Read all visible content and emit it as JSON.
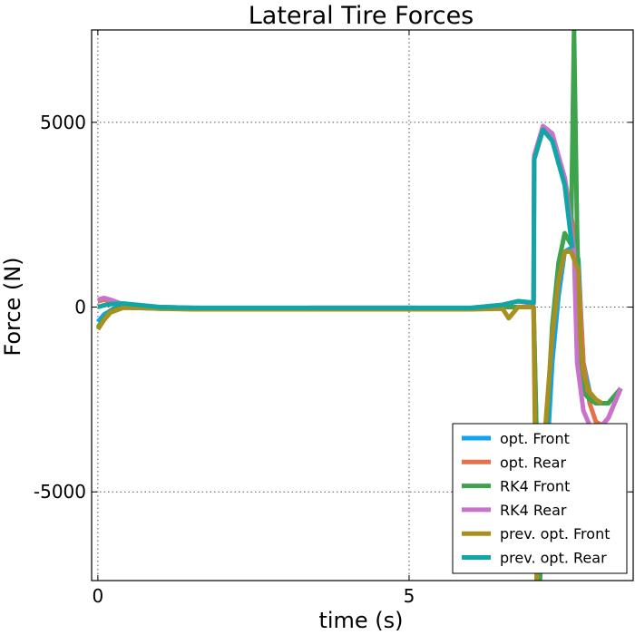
{
  "chart_data": {
    "type": "line",
    "title": "Lateral Tire Forces",
    "xlabel": "time (s)",
    "ylabel": "Force (N)",
    "xlim": [
      -0.1,
      8.6
    ],
    "ylim": [
      -7400,
      7500
    ],
    "xticks": [
      0,
      5
    ],
    "xtick_labels": [
      "0",
      "5"
    ],
    "yticks": [
      -5000,
      0,
      5000
    ],
    "ytick_labels": [
      "-5000",
      "0",
      "5000"
    ],
    "grid": true,
    "legend_position": "lower-right",
    "series": [
      {
        "name": "opt. Front",
        "color": "#0fa3f0",
        "points": [
          [
            0,
            -400
          ],
          [
            0.1,
            -200
          ],
          [
            0.3,
            0
          ],
          [
            0.6,
            -20
          ],
          [
            1,
            -40
          ],
          [
            1.5,
            -40
          ],
          [
            2,
            -50
          ],
          [
            2.5,
            -40
          ],
          [
            3,
            -50
          ],
          [
            3.5,
            -40
          ],
          [
            4,
            -40
          ],
          [
            4.5,
            -40
          ],
          [
            5,
            -40
          ],
          [
            5.5,
            -40
          ],
          [
            6,
            -40
          ],
          [
            6.5,
            0
          ],
          [
            6.75,
            0
          ],
          [
            7,
            0
          ],
          [
            7.1,
            -7400
          ],
          [
            7.2,
            -4500
          ],
          [
            7.3,
            -1500
          ],
          [
            7.4,
            300
          ],
          [
            7.5,
            1500
          ],
          [
            7.6,
            1600
          ],
          [
            7.72,
            1300
          ],
          [
            7.76,
            -200
          ],
          [
            7.8,
            -1500
          ],
          [
            7.9,
            -2300
          ],
          [
            8,
            -2600
          ],
          [
            8.2,
            -2600
          ],
          [
            8.4,
            -2200
          ]
        ]
      },
      {
        "name": "opt. Rear",
        "color": "#e5704a",
        "points": [
          [
            0,
            150
          ],
          [
            0.1,
            200
          ],
          [
            0.2,
            150
          ],
          [
            0.4,
            50
          ],
          [
            0.7,
            0
          ],
          [
            1,
            0
          ],
          [
            1.5,
            -20
          ],
          [
            2,
            -30
          ],
          [
            2.5,
            -30
          ],
          [
            3,
            -30
          ],
          [
            3.5,
            -20
          ],
          [
            4,
            -20
          ],
          [
            4.5,
            -20
          ],
          [
            5,
            -20
          ],
          [
            5.5,
            -30
          ],
          [
            6,
            -20
          ],
          [
            6.5,
            60
          ],
          [
            6.75,
            160
          ],
          [
            7,
            100
          ],
          [
            7.01,
            4000
          ],
          [
            7.15,
            4800
          ],
          [
            7.3,
            4600
          ],
          [
            7.5,
            3500
          ],
          [
            7.7,
            1500
          ],
          [
            7.75,
            0
          ],
          [
            7.8,
            -1500
          ],
          [
            7.9,
            -2600
          ],
          [
            8,
            -3100
          ],
          [
            8.1,
            -3200
          ],
          [
            8.2,
            -3000
          ],
          [
            8.3,
            -2600
          ],
          [
            8.4,
            -2200
          ]
        ]
      },
      {
        "name": "RK4 Front",
        "color": "#3fa34d",
        "points": [
          [
            0,
            -550
          ],
          [
            0.1,
            -300
          ],
          [
            0.2,
            -100
          ],
          [
            0.4,
            0
          ],
          [
            0.7,
            0
          ],
          [
            1,
            -20
          ],
          [
            1.5,
            -40
          ],
          [
            2,
            -40
          ],
          [
            2.5,
            -40
          ],
          [
            3,
            -40
          ],
          [
            3.5,
            -40
          ],
          [
            4,
            -40
          ],
          [
            4.5,
            -40
          ],
          [
            5,
            -40
          ],
          [
            5.5,
            -40
          ],
          [
            6,
            -40
          ],
          [
            6.5,
            0
          ],
          [
            6.75,
            0
          ],
          [
            7,
            0
          ],
          [
            7.1,
            -7400
          ],
          [
            7.2,
            -3500
          ],
          [
            7.3,
            -500
          ],
          [
            7.4,
            1200
          ],
          [
            7.5,
            2000
          ],
          [
            7.6,
            1700
          ],
          [
            7.65,
            7500
          ],
          [
            7.7,
            2000
          ],
          [
            7.75,
            -1500
          ],
          [
            7.8,
            -2300
          ],
          [
            7.9,
            -2500
          ],
          [
            8,
            -2600
          ],
          [
            8.2,
            -2600
          ],
          [
            8.4,
            -2200
          ]
        ]
      },
      {
        "name": "RK4 Rear",
        "color": "#c972cb",
        "points": [
          [
            0,
            200
          ],
          [
            0.1,
            250
          ],
          [
            0.2,
            200
          ],
          [
            0.4,
            80
          ],
          [
            0.7,
            0
          ],
          [
            1,
            0
          ],
          [
            1.5,
            -20
          ],
          [
            2,
            -30
          ],
          [
            2.5,
            -30
          ],
          [
            3,
            -30
          ],
          [
            3.5,
            -20
          ],
          [
            4,
            -20
          ],
          [
            4.5,
            -20
          ],
          [
            5,
            -20
          ],
          [
            5.5,
            -30
          ],
          [
            6,
            -20
          ],
          [
            6.5,
            60
          ],
          [
            6.75,
            160
          ],
          [
            7,
            100
          ],
          [
            7.01,
            4100
          ],
          [
            7.15,
            4900
          ],
          [
            7.3,
            4700
          ],
          [
            7.5,
            3500
          ],
          [
            7.65,
            1500
          ],
          [
            7.7,
            -1500
          ],
          [
            7.8,
            -2800
          ],
          [
            7.9,
            -3200
          ],
          [
            8,
            -3300
          ],
          [
            8.1,
            -3200
          ],
          [
            8.2,
            -3000
          ],
          [
            8.3,
            -2600
          ],
          [
            8.4,
            -2200
          ]
        ]
      },
      {
        "name": "prev. opt. Front",
        "color": "#a89020",
        "points": [
          [
            0,
            -600
          ],
          [
            0.1,
            -350
          ],
          [
            0.2,
            -150
          ],
          [
            0.4,
            -20
          ],
          [
            0.7,
            -20
          ],
          [
            1,
            -40
          ],
          [
            1.5,
            -60
          ],
          [
            2,
            -60
          ],
          [
            2.5,
            -60
          ],
          [
            3,
            -60
          ],
          [
            3.5,
            -60
          ],
          [
            4,
            -60
          ],
          [
            4.5,
            -60
          ],
          [
            5,
            -60
          ],
          [
            5.5,
            -60
          ],
          [
            6,
            -60
          ],
          [
            6.5,
            -40
          ],
          [
            6.6,
            -300
          ],
          [
            6.75,
            0
          ],
          [
            7,
            0
          ],
          [
            7.05,
            -7400
          ],
          [
            7.2,
            -3000
          ],
          [
            7.3,
            -800
          ],
          [
            7.4,
            700
          ],
          [
            7.5,
            1500
          ],
          [
            7.6,
            1500
          ],
          [
            7.72,
            1000
          ],
          [
            7.75,
            -800
          ],
          [
            7.8,
            -1800
          ],
          [
            7.9,
            -2300
          ],
          [
            8,
            -2500
          ],
          [
            8.1,
            -2600
          ]
        ]
      },
      {
        "name": "prev. opt. Rear",
        "color": "#10a6a6",
        "points": [
          [
            0,
            0
          ],
          [
            0.1,
            50
          ],
          [
            0.2,
            80
          ],
          [
            0.4,
            100
          ],
          [
            0.7,
            50
          ],
          [
            1,
            0
          ],
          [
            1.5,
            -20
          ],
          [
            2,
            -20
          ],
          [
            2.5,
            -20
          ],
          [
            3,
            -20
          ],
          [
            3.5,
            -20
          ],
          [
            4,
            -20
          ],
          [
            4.5,
            -20
          ],
          [
            5,
            -20
          ],
          [
            5.5,
            -20
          ],
          [
            6,
            -20
          ],
          [
            6.5,
            60
          ],
          [
            6.75,
            160
          ],
          [
            7,
            120
          ],
          [
            7.01,
            4000
          ],
          [
            7.15,
            4800
          ],
          [
            7.3,
            4500
          ],
          [
            7.5,
            3300
          ],
          [
            7.62,
            1600
          ]
        ]
      }
    ]
  }
}
